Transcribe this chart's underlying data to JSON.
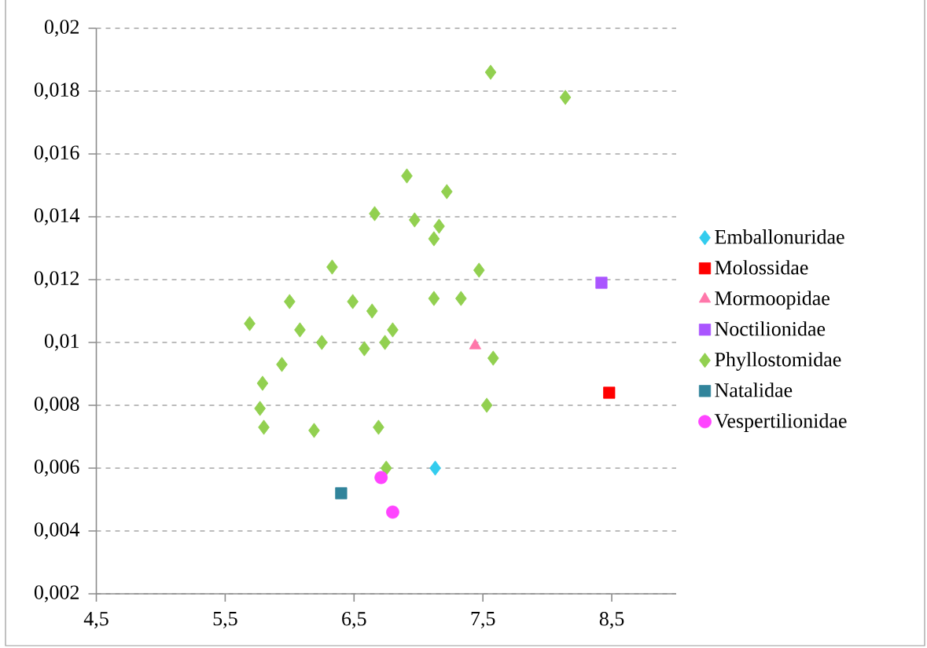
{
  "chart_data": {
    "type": "scatter",
    "xlim": [
      4.5,
      9
    ],
    "ylim": [
      0.002,
      0.02
    ],
    "xticks": [
      {
        "value": 4.5,
        "label": "4,5"
      },
      {
        "value": 5.5,
        "label": "5,5"
      },
      {
        "value": 6.5,
        "label": "6,5"
      },
      {
        "value": 7.5,
        "label": "7,5"
      },
      {
        "value": 8.5,
        "label": "8,5"
      }
    ],
    "yticks": [
      {
        "value": 0.002,
        "label": "0,002"
      },
      {
        "value": 0.004,
        "label": "0,004"
      },
      {
        "value": 0.006,
        "label": "0,006"
      },
      {
        "value": 0.008,
        "label": "0,008"
      },
      {
        "value": 0.01,
        "label": "0,01"
      },
      {
        "value": 0.012,
        "label": "0,012"
      },
      {
        "value": 0.014,
        "label": "0,014"
      },
      {
        "value": 0.016,
        "label": "0,016"
      },
      {
        "value": 0.018,
        "label": "0,018"
      },
      {
        "value": 0.02,
        "label": "0,02"
      }
    ],
    "grid": "y",
    "legend": "right",
    "series": [
      {
        "name": "Emballonuridae",
        "color": "#33ccee",
        "marker": "diamond",
        "x": [
          7.13
        ],
        "values": [
          0.006
        ]
      },
      {
        "name": "Molossidae",
        "color": "#ff0000",
        "marker": "square",
        "x": [
          8.48
        ],
        "values": [
          0.0084
        ]
      },
      {
        "name": "Mormoopidae",
        "color": "#ff77aa",
        "marker": "triangle",
        "x": [
          7.44
        ],
        "values": [
          0.0099
        ]
      },
      {
        "name": "Noctilionidae",
        "color": "#aa55ff",
        "marker": "square",
        "x": [
          8.42
        ],
        "values": [
          0.0119
        ]
      },
      {
        "name": "Phyllostomidae",
        "color": "#92d050",
        "marker": "diamond",
        "x": [
          7.56,
          8.14,
          6.91,
          7.22,
          6.66,
          6.97,
          7.16,
          7.12,
          6.33,
          7.47,
          6.0,
          6.49,
          7.12,
          7.33,
          6.64,
          5.69,
          6.08,
          6.8,
          6.25,
          6.74,
          6.58,
          7.58,
          5.94,
          5.79,
          5.77,
          7.53,
          5.8,
          6.19,
          6.69,
          6.75
        ],
        "values": [
          0.0186,
          0.0178,
          0.0153,
          0.0148,
          0.0141,
          0.0139,
          0.0137,
          0.0133,
          0.0124,
          0.0123,
          0.0113,
          0.0113,
          0.0114,
          0.0114,
          0.011,
          0.0106,
          0.0104,
          0.0104,
          0.01,
          0.01,
          0.0098,
          0.0095,
          0.0093,
          0.0087,
          0.0079,
          0.008,
          0.0073,
          0.0072,
          0.0073,
          0.006
        ]
      },
      {
        "name": "Natalidae",
        "color": "#31849b",
        "marker": "square",
        "x": [
          6.4
        ],
        "values": [
          0.0052
        ]
      },
      {
        "name": "Vespertilionidae",
        "color": "#ff44ff",
        "marker": "circle",
        "x": [
          6.71,
          6.8
        ],
        "values": [
          0.0057,
          0.0046
        ]
      }
    ]
  }
}
